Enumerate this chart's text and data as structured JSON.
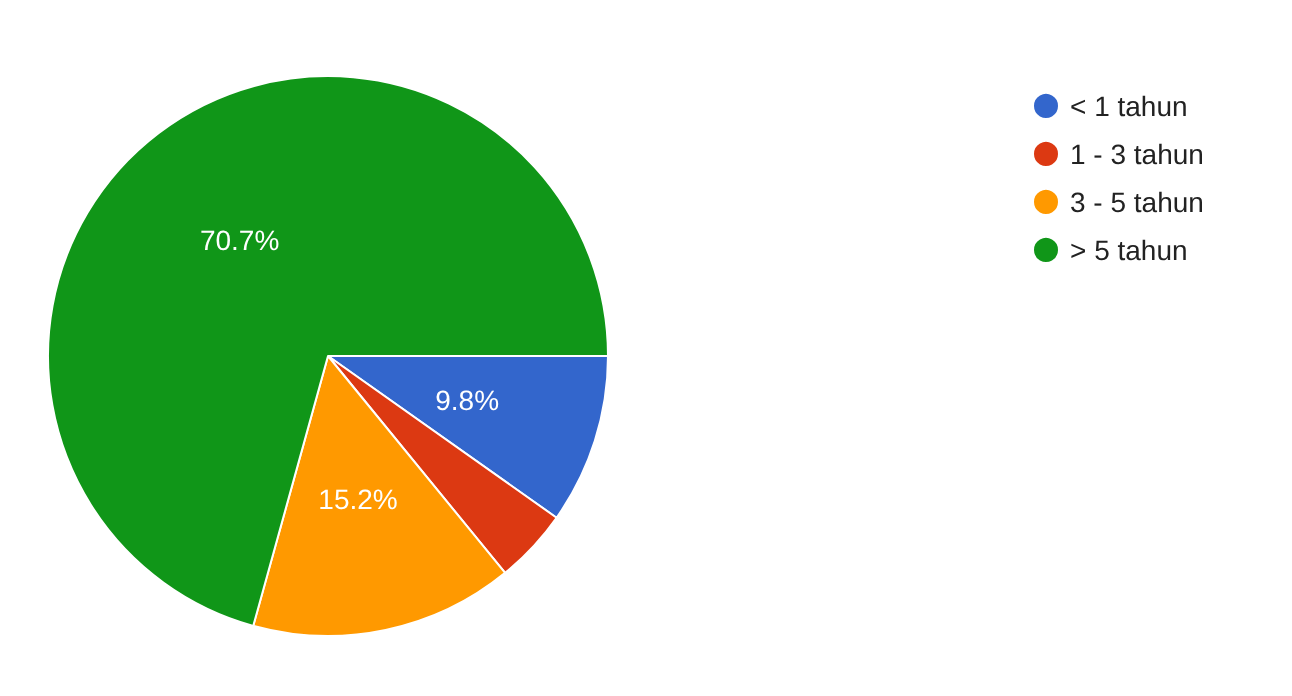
{
  "chart_data": {
    "type": "pie",
    "categories": [
      "< 1 tahun",
      "1 - 3 tahun",
      "3 - 5 tahun",
      "> 5 tahun"
    ],
    "values": [
      9.8,
      4.3,
      15.2,
      70.7
    ],
    "colors": [
      "#3366cc",
      "#dc3912",
      "#ff9900",
      "#109618"
    ],
    "value_labels": [
      "9.8%",
      null,
      "15.2%",
      "70.7%"
    ],
    "legend": "top right"
  }
}
